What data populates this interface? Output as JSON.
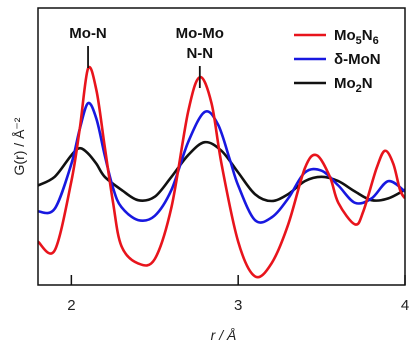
{
  "chart_data": {
    "type": "line",
    "xlabel": "r / Å",
    "ylabel": "G(r) / Å⁻²",
    "xlim": [
      1.8,
      4.0
    ],
    "x_ticks": [
      "2",
      "3",
      "4"
    ],
    "y_ticks": "none",
    "grid": false,
    "legend_position": "top-right",
    "annotations": [
      {
        "lines": [
          "Mo-N"
        ],
        "x": 2.1
      },
      {
        "lines": [
          "Mo-Mo",
          "N-N"
        ],
        "x": 2.77
      }
    ],
    "series": [
      {
        "name": "Mo5N6",
        "legend": {
          "base": "Mo",
          "sub1": "5",
          "mid": "N",
          "sub2": "6"
        },
        "color": "#e8141c",
        "x": [
          1.8,
          1.9,
          2.0,
          2.05,
          2.1,
          2.15,
          2.2,
          2.25,
          2.3,
          2.4,
          2.5,
          2.6,
          2.7,
          2.77,
          2.84,
          2.9,
          3.0,
          3.1,
          3.2,
          3.3,
          3.4,
          3.47,
          3.55,
          3.6,
          3.7,
          3.75,
          3.83,
          3.88,
          3.93,
          3.97,
          4.0
        ],
        "y": [
          -0.8,
          -0.9,
          -0.1,
          0.5,
          1.2,
          0.95,
          0.3,
          -0.35,
          -0.85,
          -1.05,
          -1.0,
          -0.4,
          0.7,
          1.1,
          0.8,
          0.1,
          -0.8,
          -1.2,
          -1.05,
          -0.6,
          0.05,
          0.2,
          -0.05,
          -0.35,
          -0.6,
          -0.45,
          0.05,
          0.25,
          0.1,
          -0.2,
          -0.3
        ]
      },
      {
        "name": "δ-MoN",
        "color": "#1818e0",
        "x": [
          1.8,
          1.9,
          2.0,
          2.05,
          2.1,
          2.15,
          2.2,
          2.25,
          2.3,
          2.4,
          2.5,
          2.6,
          2.7,
          2.8,
          2.88,
          2.95,
          3.0,
          3.1,
          3.2,
          3.3,
          3.4,
          3.5,
          3.6,
          3.7,
          3.8,
          3.9,
          4.0
        ],
        "y": [
          -0.45,
          -0.42,
          0.1,
          0.5,
          0.8,
          0.62,
          0.2,
          -0.18,
          -0.4,
          -0.55,
          -0.5,
          -0.2,
          0.35,
          0.7,
          0.55,
          0.15,
          -0.15,
          -0.55,
          -0.52,
          -0.3,
          0.0,
          0.02,
          -0.15,
          -0.35,
          -0.3,
          -0.1,
          -0.22
        ]
      },
      {
        "name": "Mo2N",
        "legend": {
          "base": "Mo",
          "sub1": "2",
          "mid": "N",
          "sub2": ""
        },
        "color": "#111111",
        "x": [
          1.8,
          1.9,
          2.0,
          2.05,
          2.1,
          2.15,
          2.2,
          2.3,
          2.4,
          2.5,
          2.6,
          2.7,
          2.8,
          2.9,
          3.0,
          3.1,
          3.2,
          3.3,
          3.4,
          3.5,
          3.6,
          3.7,
          3.8,
          3.9,
          4.0
        ],
        "y": [
          -0.15,
          -0.05,
          0.2,
          0.28,
          0.22,
          0.1,
          -0.05,
          -0.2,
          -0.32,
          -0.28,
          -0.05,
          0.2,
          0.35,
          0.25,
          0.0,
          -0.25,
          -0.33,
          -0.25,
          -0.1,
          -0.05,
          -0.1,
          -0.22,
          -0.32,
          -0.3,
          -0.2
        ]
      }
    ]
  }
}
